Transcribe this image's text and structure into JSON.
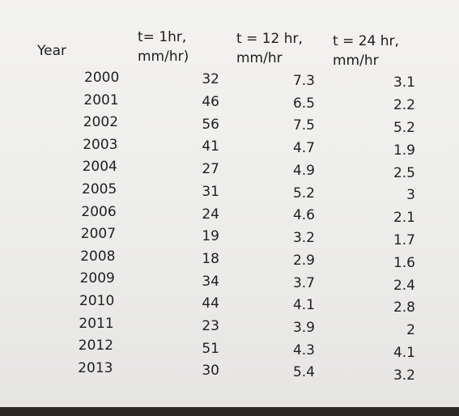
{
  "table": {
    "headers": {
      "year": "Year",
      "c1_line1": "t= 1hr,",
      "c1_line2": "mm/hr)",
      "c2_line1": "t = 12 hr,",
      "c2_line2": "mm/hr",
      "c3_line1": "t = 24 hr,",
      "c3_line2": "mm/hr"
    },
    "rows": [
      {
        "year": "2000",
        "t1": "32",
        "t12": "7.3",
        "t24": "3.1"
      },
      {
        "year": "2001",
        "t1": "46",
        "t12": "6.5",
        "t24": "2.2"
      },
      {
        "year": "2002",
        "t1": "56",
        "t12": "7.5",
        "t24": "5.2"
      },
      {
        "year": "2003",
        "t1": "41",
        "t12": "4.7",
        "t24": "1.9"
      },
      {
        "year": "2004",
        "t1": "27",
        "t12": "4.9",
        "t24": "2.5"
      },
      {
        "year": "2005",
        "t1": "31",
        "t12": "5.2",
        "t24": "3"
      },
      {
        "year": "2006",
        "t1": "24",
        "t12": "4.6",
        "t24": "2.1"
      },
      {
        "year": "2007",
        "t1": "19",
        "t12": "3.2",
        "t24": "1.7"
      },
      {
        "year": "2008",
        "t1": "18",
        "t12": "2.9",
        "t24": "1.6"
      },
      {
        "year": "2009",
        "t1": "34",
        "t12": "3.7",
        "t24": "2.4"
      },
      {
        "year": "2010",
        "t1": "44",
        "t12": "4.1",
        "t24": "2.8"
      },
      {
        "year": "2011",
        "t1": "23",
        "t12": "3.9",
        "t24": "2"
      },
      {
        "year": "2012",
        "t1": "51",
        "t12": "4.3",
        "t24": "4.1"
      },
      {
        "year": "2013",
        "t1": "30",
        "t12": "5.4",
        "t24": "3.2"
      }
    ]
  }
}
